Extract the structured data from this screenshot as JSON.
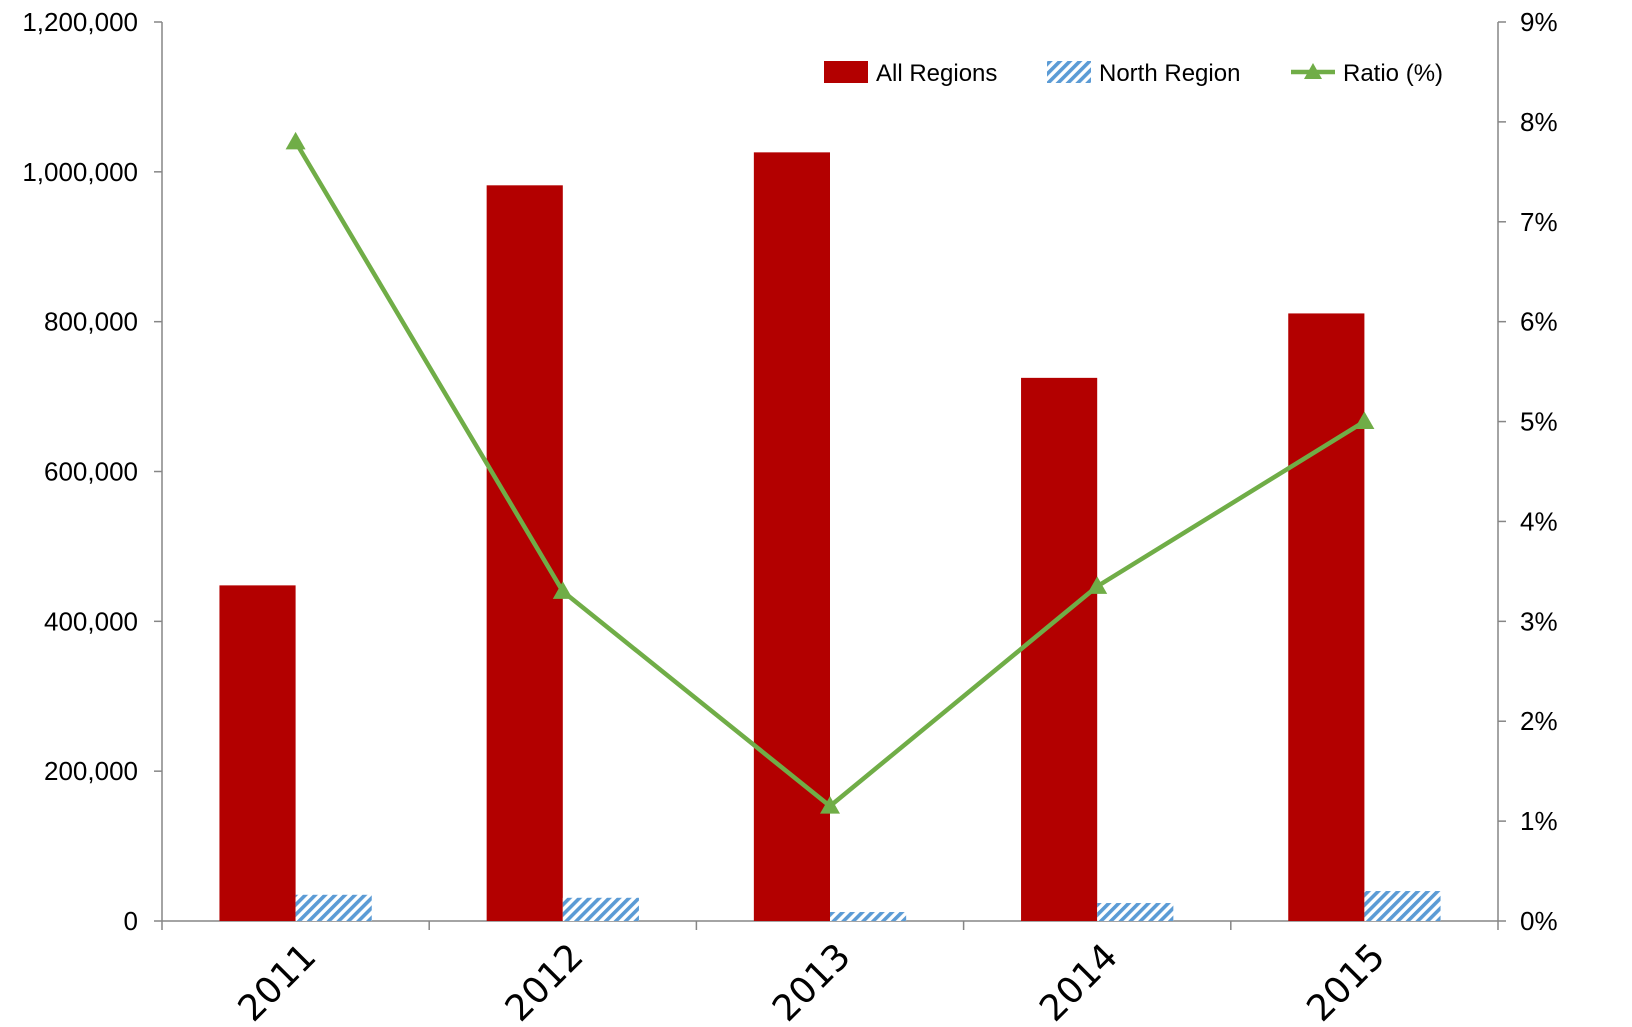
{
  "chart_data": {
    "type": "bar",
    "categories": [
      "2011",
      "2012",
      "2013",
      "2014",
      "2015"
    ],
    "series": [
      {
        "name": "All Regions",
        "kind": "bar",
        "axis": "left",
        "values": [
          448000,
          982000,
          1026000,
          725000,
          811000
        ]
      },
      {
        "name": "North Region",
        "kind": "bar",
        "axis": "left",
        "values": [
          35000,
          31000,
          12000,
          24000,
          40000
        ]
      },
      {
        "name": "Ratio (%)",
        "kind": "line",
        "axis": "right",
        "values": [
          7.8,
          3.3,
          1.15,
          3.35,
          5.0
        ]
      }
    ],
    "y_left": {
      "ylim": [
        0,
        1200000
      ],
      "ticks": [
        0,
        200000,
        400000,
        600000,
        800000,
        1000000,
        1200000
      ],
      "tick_labels": [
        "0",
        "200,000",
        "400,000",
        "600,000",
        "800,000",
        "1,000,000",
        "1,200,000"
      ]
    },
    "y_right": {
      "ylim": [
        0,
        9
      ],
      "ticks": [
        0,
        1,
        2,
        3,
        4,
        5,
        6,
        7,
        8,
        9
      ],
      "tick_labels": [
        "0%",
        "1%",
        "2%",
        "3%",
        "4%",
        "5%",
        "6%",
        "7%",
        "8%",
        "9%"
      ]
    },
    "grid": false,
    "legend": {
      "position": "top-right",
      "entries": [
        "All Regions",
        "North Region",
        "Ratio (%)"
      ]
    },
    "colors": {
      "all_regions": "#b30000",
      "north_region": "#5b9bd5",
      "ratio": "#70ad47",
      "axis": "#868686"
    }
  }
}
